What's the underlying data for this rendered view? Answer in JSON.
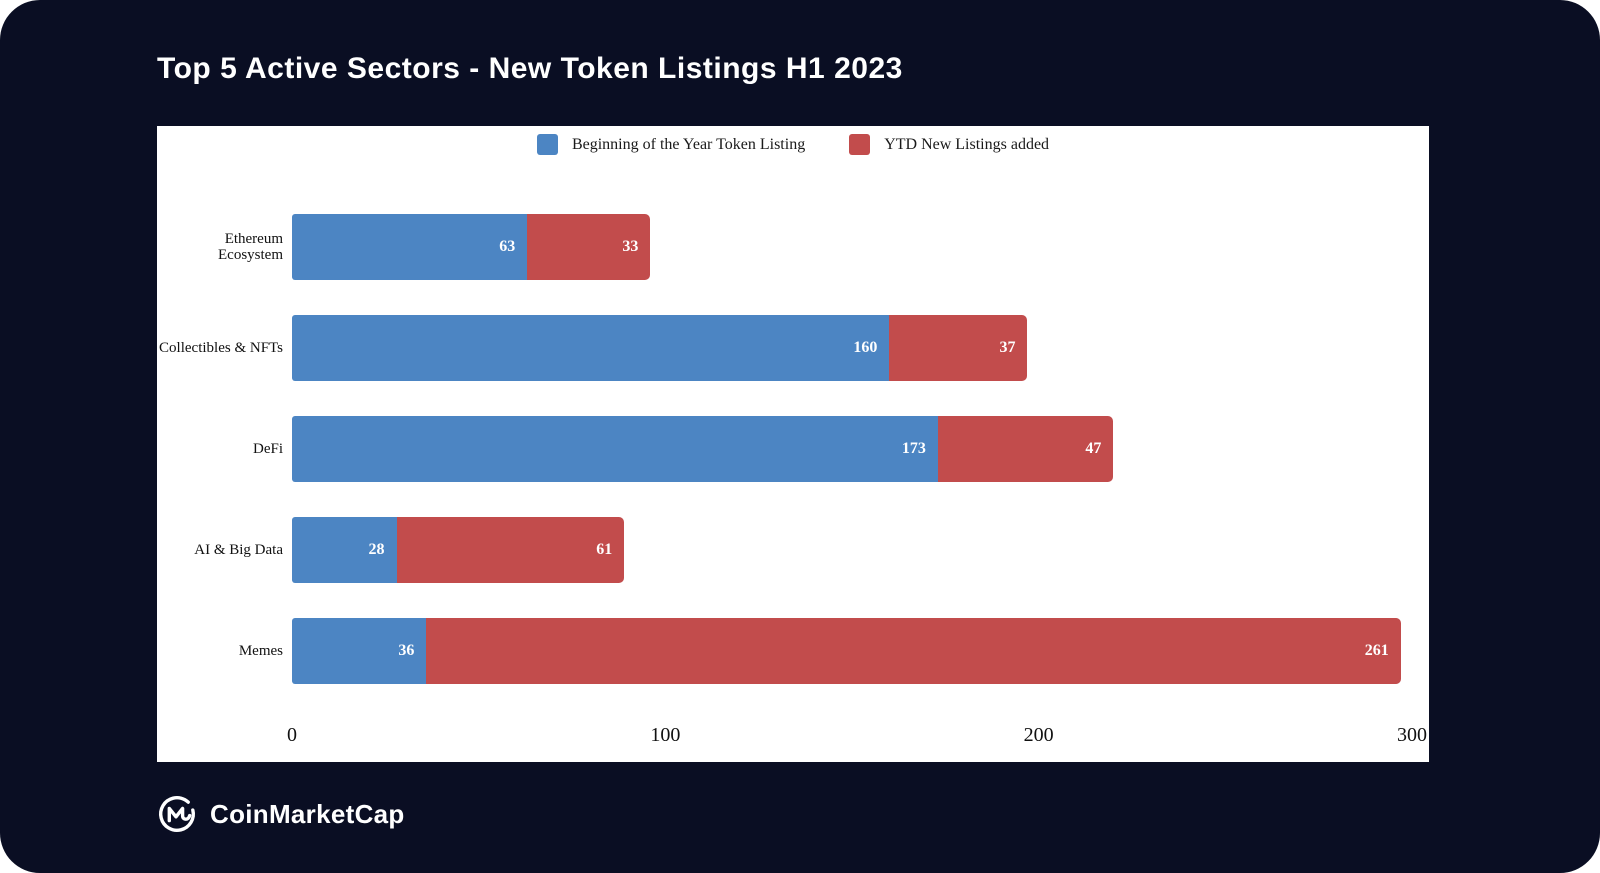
{
  "header": {
    "title": "Top 5 Active Sectors - New Token Listings H1 2023"
  },
  "chart_data": {
    "type": "bar",
    "orientation": "horizontal",
    "stacked": true,
    "categories": [
      "Ethereum Ecosystem",
      "Collectibles & NFTs",
      "DeFi",
      "AI & Big Data",
      "Memes"
    ],
    "series": [
      {
        "name": "Beginning of the Year Token Listing",
        "color": "#4c85c3",
        "values": [
          63,
          160,
          173,
          28,
          36
        ]
      },
      {
        "name": "YTD New Listings added",
        "color": "#c24c4c",
        "values": [
          33,
          37,
          47,
          61,
          261
        ]
      }
    ],
    "xlim": [
      0,
      300
    ],
    "xticks": [
      0,
      100,
      200,
      300
    ],
    "legend_position": "top",
    "grid": false,
    "value_labels": "inside-end"
  },
  "colors": {
    "card_background": "#0a0e23",
    "panel_background": "#ffffff",
    "title_text": "#ffffff",
    "blue_series": "#4c85c3",
    "red_series": "#c24c4c"
  },
  "footer": {
    "brand": "CoinMarketCap",
    "logo_icon": "coinmarketcap-logo"
  }
}
